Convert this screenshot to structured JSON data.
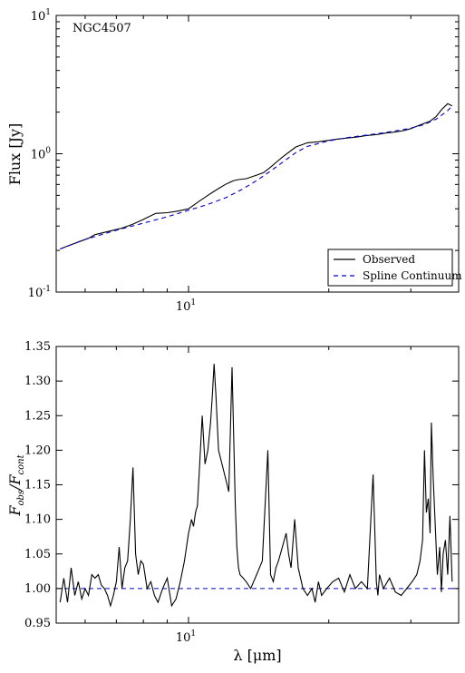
{
  "chart_data": [
    {
      "type": "line",
      "panel": "top",
      "annotation": "NGC4507",
      "ylabel": "Flux [Jy]",
      "xlabel": "",
      "xscale": "log",
      "yscale": "log",
      "xlim": [
        5.2,
        38.0
      ],
      "ylim": [
        0.1,
        10
      ],
      "x_ticks": [
        {
          "value": 10,
          "label": "10"
        }
      ],
      "x_tick_labels": [
        "10^1"
      ],
      "y_ticks": [
        {
          "value": 0.1,
          "label": "10^-1"
        },
        {
          "value": 1,
          "label": "10^0"
        },
        {
          "value": 10,
          "label": "10^1"
        }
      ],
      "y_tick_labels": [
        "10^-1",
        "10^0",
        "10^1"
      ],
      "legend": {
        "position": "lower-right",
        "entries": [
          "Observed",
          "Spline Continuum"
        ]
      },
      "series": [
        {
          "name": "Observed",
          "color": "#000000",
          "style": "solid",
          "x": [
            5.3,
            5.5,
            5.8,
            6.1,
            6.3,
            6.6,
            6.9,
            7.2,
            7.6,
            8.0,
            8.5,
            9.0,
            9.5,
            10.0,
            10.5,
            11.0,
            11.3,
            11.6,
            12.0,
            12.5,
            12.8,
            13.3,
            14.0,
            14.5,
            15.0,
            15.5,
            16.0,
            17.0,
            18.0,
            19.0,
            20.0,
            21.0,
            22.0,
            23.0,
            24.0,
            25.5,
            26.5,
            27.5,
            29.0,
            30.0,
            31.5,
            33.0,
            34.0,
            35.0,
            36.0,
            36.8
          ],
          "values": [
            0.205,
            0.215,
            0.23,
            0.245,
            0.26,
            0.27,
            0.28,
            0.29,
            0.31,
            0.335,
            0.37,
            0.375,
            0.385,
            0.4,
            0.45,
            0.5,
            0.53,
            0.56,
            0.6,
            0.64,
            0.65,
            0.66,
            0.7,
            0.73,
            0.8,
            0.88,
            0.96,
            1.12,
            1.2,
            1.22,
            1.25,
            1.28,
            1.3,
            1.32,
            1.35,
            1.38,
            1.41,
            1.43,
            1.47,
            1.52,
            1.62,
            1.72,
            1.86,
            2.1,
            2.3,
            2.22
          ]
        },
        {
          "name": "Spline Continuum",
          "color": "#0000cc",
          "style": "dashed",
          "x": [
            5.3,
            6.0,
            7.0,
            8.0,
            9.0,
            10.0,
            11.0,
            12.0,
            13.0,
            14.0,
            15.0,
            16.0,
            17.0,
            18.0,
            20.0,
            22.0,
            24.0,
            26.0,
            28.0,
            30.0,
            32.0,
            34.0,
            36.0,
            36.8
          ],
          "values": [
            0.205,
            0.24,
            0.28,
            0.315,
            0.35,
            0.39,
            0.43,
            0.48,
            0.55,
            0.64,
            0.75,
            0.88,
            1.02,
            1.13,
            1.24,
            1.31,
            1.36,
            1.41,
            1.47,
            1.53,
            1.62,
            1.78,
            2.05,
            2.22
          ]
        }
      ]
    },
    {
      "type": "line",
      "panel": "bottom",
      "xlabel": "λ [μm]",
      "ylabel": "F_obs/F_cont",
      "xscale": "log",
      "yscale": "linear",
      "xlim": [
        5.2,
        38.0
      ],
      "ylim": [
        0.95,
        1.35
      ],
      "x_ticks": [
        {
          "value": 10,
          "label": "10"
        }
      ],
      "x_tick_labels": [
        "10^1"
      ],
      "y_ticks": [
        0.95,
        1.0,
        1.05,
        1.1,
        1.15,
        1.2,
        1.25,
        1.3,
        1.35
      ],
      "y_tick_labels": [
        "0.95",
        "1.00",
        "1.05",
        "1.10",
        "1.15",
        "1.20",
        "1.25",
        "1.30",
        "1.35"
      ],
      "reference_line": {
        "y": 1.0,
        "color": "#0000cc",
        "style": "dashed"
      },
      "series": [
        {
          "color": "#000000",
          "style": "solid",
          "x": [
            5.3,
            5.4,
            5.5,
            5.6,
            5.7,
            5.8,
            5.9,
            6.0,
            6.1,
            6.2,
            6.3,
            6.4,
            6.5,
            6.6,
            6.7,
            6.8,
            6.9,
            7.0,
            7.1,
            7.2,
            7.3,
            7.4,
            7.5,
            7.6,
            7.7,
            7.8,
            7.9,
            8.0,
            8.15,
            8.3,
            8.45,
            8.6,
            8.8,
            9.0,
            9.2,
            9.4,
            9.6,
            9.8,
            10.0,
            10.15,
            10.25,
            10.35,
            10.45,
            10.55,
            10.7,
            10.85,
            11.0,
            11.15,
            11.25,
            11.35,
            11.45,
            11.6,
            11.8,
            12.0,
            12.2,
            12.4,
            12.6,
            12.7,
            12.8,
            12.9,
            13.1,
            13.3,
            13.6,
            14.0,
            14.4,
            14.8,
            15.0,
            15.2,
            15.4,
            15.6,
            15.9,
            16.2,
            16.4,
            16.6,
            16.9,
            17.2,
            17.6,
            18.0,
            18.4,
            18.7,
            19.0,
            19.3,
            19.8,
            20.4,
            21.0,
            21.6,
            22.2,
            22.8,
            23.5,
            24.2,
            24.9,
            25.3,
            25.5,
            25.7,
            26.2,
            27.0,
            27.8,
            28.6,
            29.4,
            30.2,
            30.9,
            31.4,
            31.8,
            32.1,
            32.4,
            32.7,
            33.0,
            33.2,
            33.5,
            33.8,
            34.2,
            34.6,
            34.9,
            35.2,
            35.6,
            36.0,
            36.4,
            36.8
          ],
          "values": [
            0.98,
            1.015,
            0.98,
            1.03,
            0.99,
            1.01,
            0.985,
            1.0,
            0.99,
            1.02,
            1.015,
            1.02,
            1.005,
            1.0,
            0.99,
            0.975,
            0.99,
            1.01,
            1.06,
            1.0,
            1.03,
            1.04,
            1.1,
            1.175,
            1.05,
            1.02,
            1.04,
            1.035,
            1.0,
            1.01,
            0.99,
            0.98,
            1.0,
            1.015,
            0.975,
            0.985,
            1.01,
            1.04,
            1.08,
            1.1,
            1.09,
            1.11,
            1.12,
            1.17,
            1.25,
            1.18,
            1.2,
            1.24,
            1.28,
            1.325,
            1.28,
            1.2,
            1.18,
            1.16,
            1.14,
            1.32,
            1.12,
            1.06,
            1.03,
            1.02,
            1.015,
            1.01,
            1.0,
            1.02,
            1.04,
            1.2,
            1.02,
            1.01,
            1.03,
            1.04,
            1.06,
            1.08,
            1.05,
            1.03,
            1.1,
            1.03,
            1.0,
            0.99,
            1.0,
            0.98,
            1.01,
            0.99,
            1.0,
            1.01,
            1.015,
            0.995,
            1.02,
            1.0,
            1.01,
            1.0,
            1.165,
            1.01,
            0.99,
            1.02,
            1.0,
            1.015,
            0.995,
            0.99,
            1.0,
            1.01,
            1.02,
            1.04,
            1.07,
            1.2,
            1.11,
            1.13,
            1.08,
            1.24,
            1.16,
            1.1,
            1.02,
            1.06,
            0.995,
            1.05,
            1.07,
            1.02,
            1.105,
            1.01
          ]
        }
      ]
    }
  ]
}
